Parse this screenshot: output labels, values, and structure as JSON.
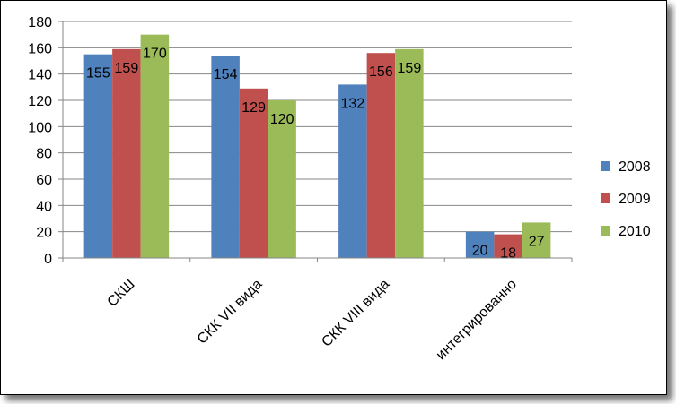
{
  "chart_data": {
    "type": "bar",
    "title": "",
    "xlabel": "",
    "ylabel": "",
    "categories": [
      "СКШ",
      "СКК VII вида",
      "СКК VIII вида",
      "интегрированно"
    ],
    "series": [
      {
        "name": "2008",
        "color": "#4f81bd",
        "values": [
          155,
          154,
          132,
          20
        ]
      },
      {
        "name": "2009",
        "color": "#c0504d",
        "values": [
          159,
          129,
          156,
          18
        ]
      },
      {
        "name": "2010",
        "color": "#9bbb59",
        "values": [
          170,
          120,
          159,
          27
        ]
      }
    ],
    "data_labels": [
      [
        "155",
        "154",
        "132",
        "20"
      ],
      [
        "159",
        "129",
        "156",
        "18"
      ],
      [
        "170",
        "120",
        "159",
        "27"
      ]
    ],
    "ylim": [
      0,
      180
    ],
    "yticks": [
      0,
      20,
      40,
      60,
      80,
      100,
      120,
      140,
      160,
      180
    ],
    "grid": true,
    "legend_position": "right"
  }
}
